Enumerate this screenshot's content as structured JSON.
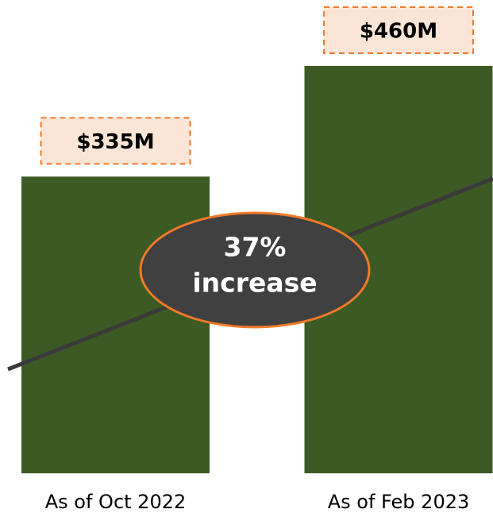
{
  "chart_data": {
    "type": "bar",
    "categories": [
      "As of Oct 2022",
      "As of Feb 2023"
    ],
    "values": [
      335,
      460
    ],
    "value_labels": [
      "$335M",
      "$460M"
    ],
    "color": "#3c5a23",
    "annotation": [
      "37%",
      "increase"
    ]
  }
}
